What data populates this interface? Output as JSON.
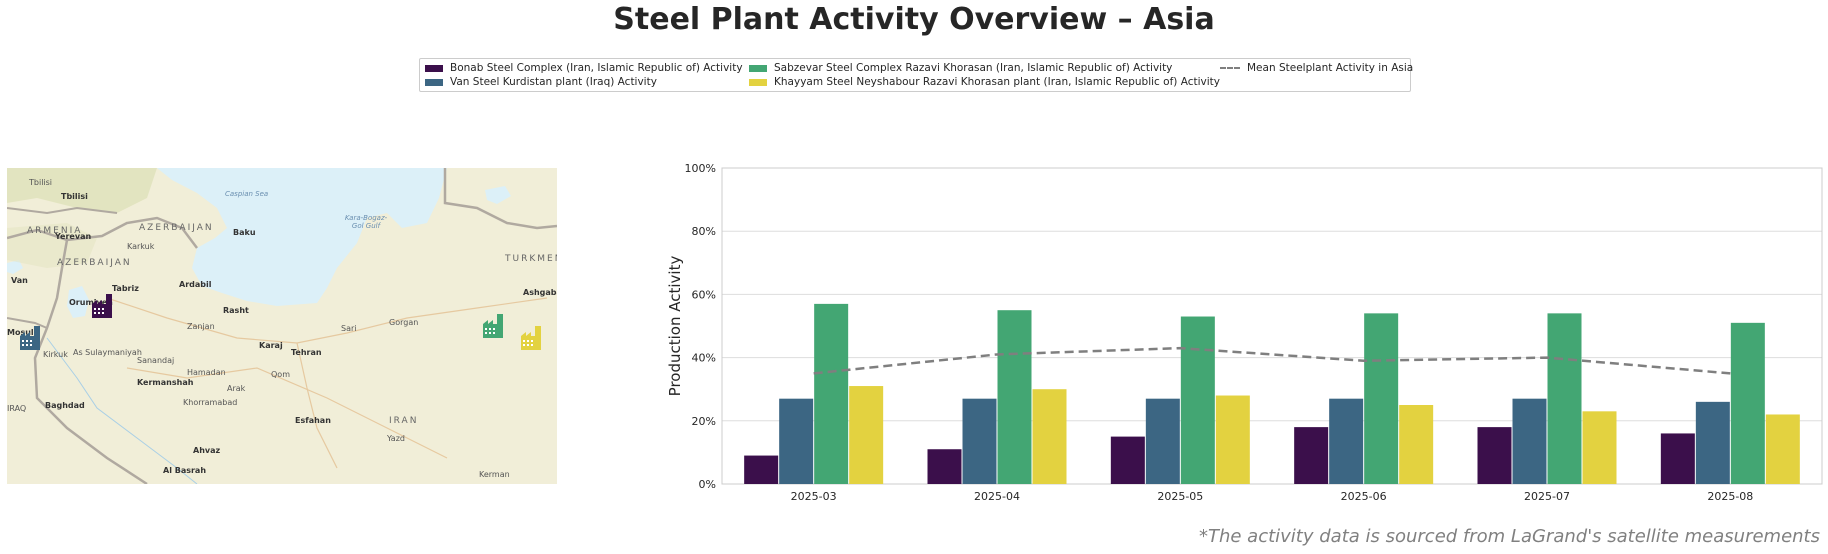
{
  "page": {
    "title": "Steel Plant Activity Overview – Asia",
    "source_note": "*The activity data is sourced from LaGrand's satellite measurements"
  },
  "legend": {
    "items": [
      {
        "label": "Bonab Steel Complex (Iran, Islamic Republic of) Activity",
        "color": "#3b0f4b",
        "kind": "bar"
      },
      {
        "label": "Van Steel Kurdistan plant (Iraq) Activity",
        "color": "#3c6683",
        "kind": "bar"
      },
      {
        "label": "Sabzevar Steel Complex Razavi Khorasan (Iran, Islamic Republic of) Activity",
        "color": "#43a673",
        "kind": "bar"
      },
      {
        "label": "Khayyam Steel Neyshabour Razavi Khorasan plant (Iran, Islamic Republic of) Activity",
        "color": "#e3d240",
        "kind": "bar"
      },
      {
        "label": "Mean Steelplant Activity in Asia",
        "color": "#7f7f7f",
        "kind": "dashed-line"
      }
    ]
  },
  "map": {
    "labels": {
      "tbilisi": "Tbilisi",
      "yerevan": "Yerevan",
      "baku": "Baku",
      "azerbaijan": "AZERBAIJAN",
      "armenia": "ARMENIA",
      "azerbaijan2": "AZERBAIJAN",
      "caspian": "Caspian Sea",
      "karabogaz": "Kara-Bogaz-Gol Gulf",
      "turkmen": "TURKMEN",
      "ashgabat": "Ashgabat",
      "tabriz": "Tabriz",
      "ardabil": "Ardabil",
      "urmia": "Orumiyeh",
      "van": "Van",
      "rasht": "Rasht",
      "zanjan": "Zanjan",
      "sari": "Sari",
      "gorgan": "Gorgan",
      "mosul": "Mosul",
      "kirkuk": "Kirkuk",
      "sulaymaniyah": "As Sulaymaniyah",
      "sanandaj": "Sanandaj",
      "hamadan": "Hamadan",
      "karaj": "Karaj",
      "tehran": "Tehran",
      "qom": "Qom",
      "kermanshah": "Kermanshah",
      "arak": "Arak",
      "khorramabad": "Khorramabad",
      "baghdad": "Baghdad",
      "esfahan": "Esfahan",
      "iran": "IRAN",
      "yazd": "Yazd",
      "ahvaz": "Ahvaz",
      "basrah": "Al Basrah",
      "kerman": "Kerman",
      "iraq": "IRAQ",
      "karkuk": "Karkuk"
    },
    "plant_icons": [
      {
        "name": "bonab-plant",
        "color": "#3b0f4b"
      },
      {
        "name": "van-plant",
        "color": "#3c6683"
      },
      {
        "name": "sabzevar-plant",
        "color": "#43a673"
      },
      {
        "name": "khayyam-plant",
        "color": "#e3d240"
      }
    ]
  },
  "chart_data": {
    "type": "bar",
    "ylabel": "Production Activity",
    "ylim": [
      0,
      100
    ],
    "yticks": [
      0,
      20,
      40,
      60,
      80,
      100
    ],
    "ytick_labels": [
      "0%",
      "20%",
      "40%",
      "60%",
      "80%",
      "100%"
    ],
    "grid": true,
    "legend_position": "top-center",
    "categories": [
      "2025-03",
      "2025-04",
      "2025-05",
      "2025-06",
      "2025-07",
      "2025-08"
    ],
    "series": [
      {
        "name": "Bonab Steel Complex (Iran, Islamic Republic of) Activity",
        "color": "#3b0f4b",
        "values": [
          9,
          11,
          15,
          18,
          18,
          16
        ]
      },
      {
        "name": "Van Steel Kurdistan plant (Iraq) Activity",
        "color": "#3c6683",
        "values": [
          27,
          27,
          27,
          27,
          27,
          26
        ]
      },
      {
        "name": "Sabzevar Steel Complex Razavi Khorasan (Iran, Islamic Republic of) Activity",
        "color": "#43a673",
        "values": [
          57,
          55,
          53,
          54,
          54,
          51
        ]
      },
      {
        "name": "Khayyam Steel Neyshabour Razavi Khorasan plant (Iran, Islamic Republic of) Activity",
        "color": "#e3d240",
        "values": [
          31,
          30,
          28,
          25,
          23,
          22
        ]
      }
    ],
    "mean_line": {
      "name": "Mean Steelplant Activity in Asia",
      "color": "#7f7f7f",
      "style": "dashed",
      "values": [
        35,
        41,
        43,
        39,
        40,
        35
      ]
    }
  }
}
